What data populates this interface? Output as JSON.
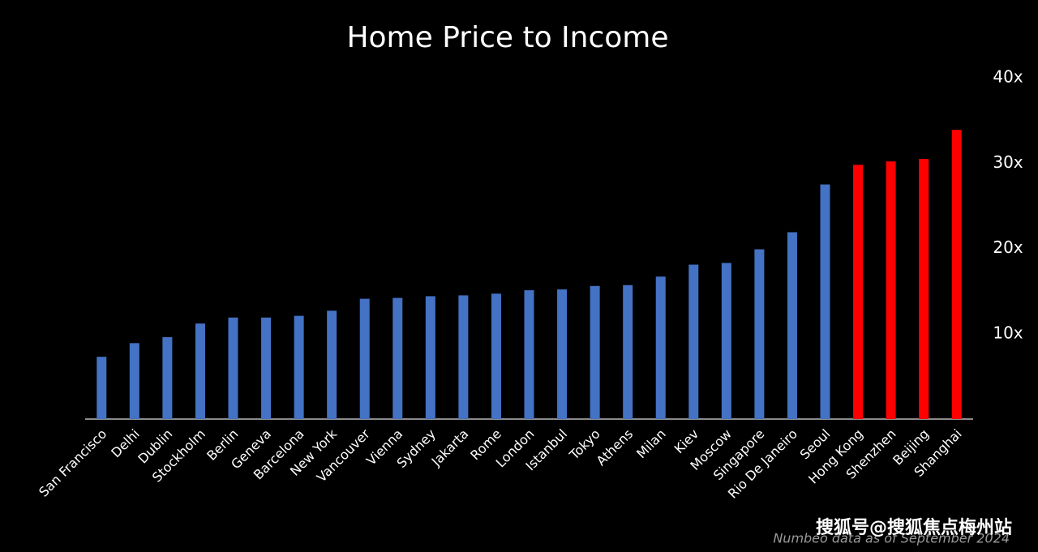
{
  "chart_data": {
    "type": "bar",
    "title": "Home Price to Income",
    "categories": [
      "San Francisco",
      "Delhi",
      "Dublin",
      "Stockholm",
      "Berlin",
      "Geneva",
      "Barcelona",
      "New York",
      "Vancouver",
      "Vienna",
      "Sydney",
      "Jakarta",
      "Rome",
      "London",
      "Istanbul",
      "Tokyo",
      "Athens",
      "Milan",
      "Kiev",
      "Moscow",
      "Singapore",
      "Rio De Janeiro",
      "Seoul",
      "Hong Kong",
      "Shenzhen",
      "Beijing",
      "Shanghai"
    ],
    "values": [
      7.3,
      8.9,
      9.6,
      11.2,
      11.9,
      11.9,
      12.1,
      12.7,
      14.1,
      14.2,
      14.4,
      14.5,
      14.7,
      15.1,
      15.2,
      15.6,
      15.7,
      16.7,
      18.1,
      18.3,
      19.9,
      21.9,
      27.5,
      29.8,
      30.2,
      30.5,
      33.9
    ],
    "colors": [
      "#4472c4",
      "#4472c4",
      "#4472c4",
      "#4472c4",
      "#4472c4",
      "#4472c4",
      "#4472c4",
      "#4472c4",
      "#4472c4",
      "#4472c4",
      "#4472c4",
      "#4472c4",
      "#4472c4",
      "#4472c4",
      "#4472c4",
      "#4472c4",
      "#4472c4",
      "#4472c4",
      "#4472c4",
      "#4472c4",
      "#4472c4",
      "#4472c4",
      "#4472c4",
      "#ff0000",
      "#ff0000",
      "#ff0000",
      "#ff0000"
    ],
    "ylim": [
      0,
      40
    ],
    "yticks": [
      {
        "value": 10,
        "label": "10x"
      },
      {
        "value": 20,
        "label": "20x"
      },
      {
        "value": 30,
        "label": "30x"
      },
      {
        "value": 40,
        "label": "40x"
      }
    ],
    "grid": false,
    "source_note": "Numbeo data as of September 2024",
    "watermark": "搜狐号@搜狐焦点梅州站"
  }
}
